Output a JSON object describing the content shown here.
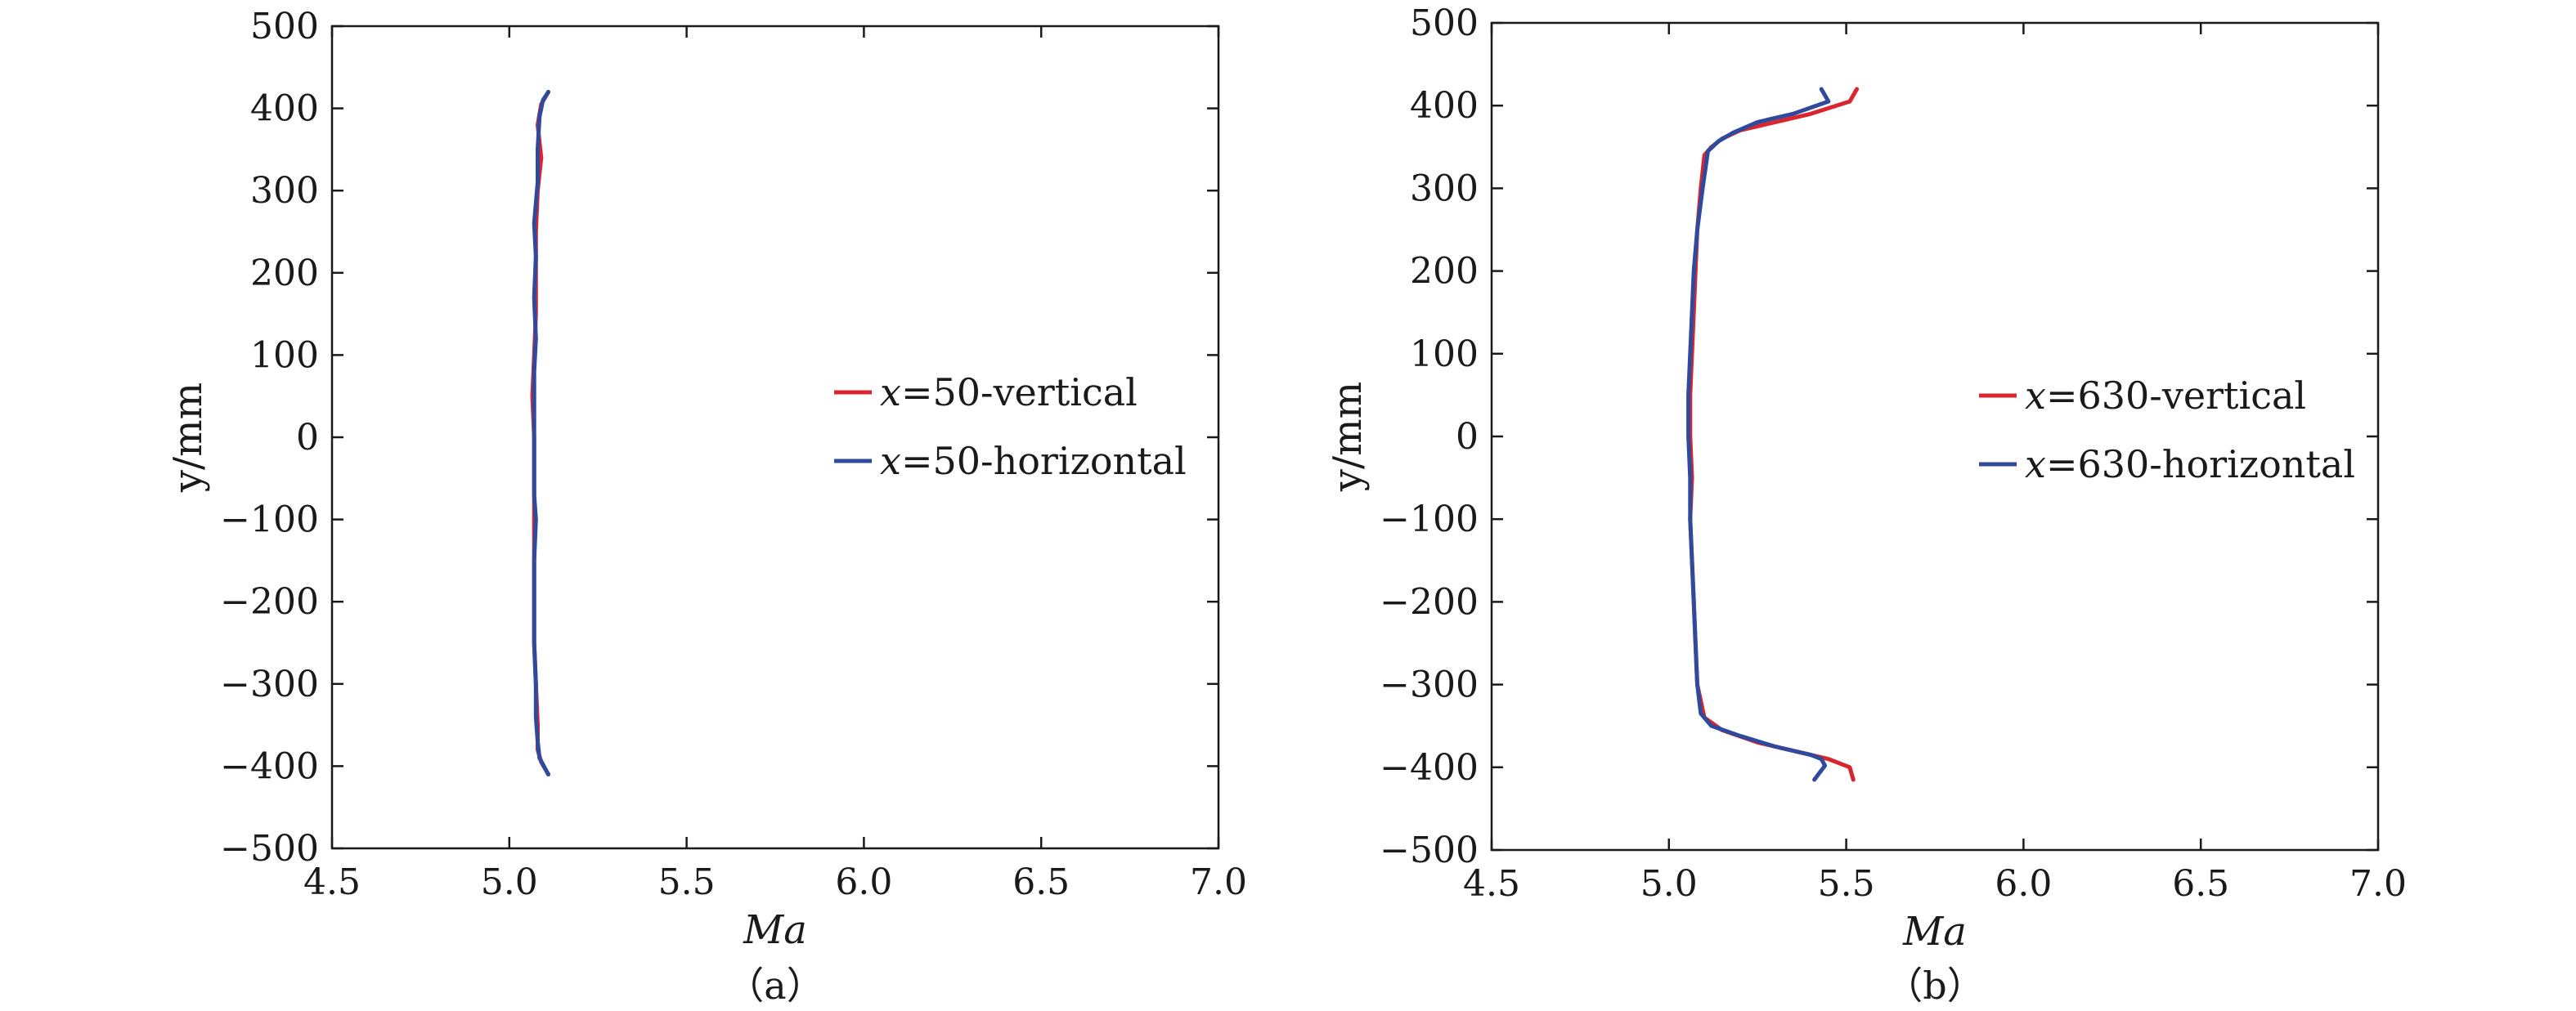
{
  "colors": {
    "vertical": "#d9262e",
    "horizontal": "#2f4a9c",
    "axis": "#1a1a1a"
  },
  "chart_data": [
    {
      "type": "line",
      "caption": "（a）",
      "xlabel": "Ma",
      "ylabel": "y/mm",
      "xlim": [
        4.5,
        7.0
      ],
      "ylim": [
        -500,
        500
      ],
      "xticks": [
        4.5,
        5.0,
        5.5,
        6.0,
        6.5,
        7.0
      ],
      "xtick_labels": [
        "4.5",
        "5.0",
        "5.5",
        "6.0",
        "6.5",
        "7.0"
      ],
      "yticks": [
        500,
        400,
        300,
        200,
        100,
        0,
        -100,
        -200,
        -300,
        -400,
        -500
      ],
      "ytick_labels": [
        "500",
        "400",
        "300",
        "200",
        "100",
        "0",
        "−100",
        "−200",
        "−300",
        "−400",
        "−500"
      ],
      "legend_position": "center-right",
      "series": [
        {
          "name": "x=50-vertical",
          "legend_var": "x",
          "legend_rest": "=50-vertical",
          "color_key": "vertical",
          "points": [
            [
              5.11,
              420
            ],
            [
              5.09,
              405
            ],
            [
              5.08,
              380
            ],
            [
              5.09,
              340
            ],
            [
              5.08,
              300
            ],
            [
              5.075,
              250
            ],
            [
              5.075,
              200
            ],
            [
              5.075,
              150
            ],
            [
              5.07,
              100
            ],
            [
              5.065,
              50
            ],
            [
              5.07,
              0
            ],
            [
              5.07,
              -50
            ],
            [
              5.07,
              -100
            ],
            [
              5.07,
              -150
            ],
            [
              5.07,
              -200
            ],
            [
              5.07,
              -250
            ],
            [
              5.075,
              -300
            ],
            [
              5.08,
              -350
            ],
            [
              5.08,
              -380
            ],
            [
              5.09,
              -395
            ],
            [
              5.11,
              -410
            ]
          ]
        },
        {
          "name": "x=50-horizontal",
          "legend_var": "x",
          "legend_rest": "=50-horizontal",
          "color_key": "horizontal",
          "points": [
            [
              5.11,
              420
            ],
            [
              5.095,
              410
            ],
            [
              5.085,
              390
            ],
            [
              5.08,
              350
            ],
            [
              5.08,
              310
            ],
            [
              5.07,
              260
            ],
            [
              5.075,
              220
            ],
            [
              5.07,
              170
            ],
            [
              5.075,
              120
            ],
            [
              5.07,
              80
            ],
            [
              5.07,
              30
            ],
            [
              5.07,
              -20
            ],
            [
              5.07,
              -70
            ],
            [
              5.075,
              -100
            ],
            [
              5.07,
              -150
            ],
            [
              5.07,
              -200
            ],
            [
              5.07,
              -250
            ],
            [
              5.075,
              -300
            ],
            [
              5.075,
              -340
            ],
            [
              5.08,
              -370
            ],
            [
              5.085,
              -390
            ],
            [
              5.11,
              -410
            ]
          ]
        }
      ]
    },
    {
      "type": "line",
      "caption": "（b）",
      "xlabel": "Ma",
      "ylabel": "y/mm",
      "xlim": [
        4.5,
        7.0
      ],
      "ylim": [
        -500,
        500
      ],
      "xticks": [
        4.5,
        5.0,
        5.5,
        6.0,
        6.5,
        7.0
      ],
      "xtick_labels": [
        "4.5",
        "5.0",
        "5.5",
        "6.0",
        "6.5",
        "7.0"
      ],
      "yticks": [
        500,
        400,
        300,
        200,
        100,
        0,
        -100,
        -200,
        -300,
        -400,
        -500
      ],
      "ytick_labels": [
        "500",
        "400",
        "300",
        "200",
        "100",
        "0",
        "−100",
        "−200",
        "−300",
        "−400",
        "−500"
      ],
      "legend_position": "center-right",
      "series": [
        {
          "name": "x=630-vertical",
          "legend_var": "x",
          "legend_rest": "=630-vertical",
          "color_key": "vertical",
          "points": [
            [
              5.53,
              420
            ],
            [
              5.51,
              405
            ],
            [
              5.4,
              390
            ],
            [
              5.3,
              380
            ],
            [
              5.2,
              370
            ],
            [
              5.15,
              360
            ],
            [
              5.12,
              350
            ],
            [
              5.1,
              340
            ],
            [
              5.09,
              300
            ],
            [
              5.08,
              250
            ],
            [
              5.075,
              200
            ],
            [
              5.07,
              150
            ],
            [
              5.065,
              100
            ],
            [
              5.06,
              50
            ],
            [
              5.06,
              0
            ],
            [
              5.065,
              -50
            ],
            [
              5.06,
              -100
            ],
            [
              5.065,
              -150
            ],
            [
              5.07,
              -200
            ],
            [
              5.075,
              -250
            ],
            [
              5.08,
              -300
            ],
            [
              5.1,
              -340
            ],
            [
              5.15,
              -355
            ],
            [
              5.25,
              -370
            ],
            [
              5.35,
              -380
            ],
            [
              5.45,
              -390
            ],
            [
              5.51,
              -400
            ],
            [
              5.52,
              -415
            ]
          ]
        },
        {
          "name": "x=630-horizontal",
          "legend_var": "x",
          "legend_rest": "=630-horizontal",
          "color_key": "horizontal",
          "points": [
            [
              5.43,
              420
            ],
            [
              5.45,
              405
            ],
            [
              5.35,
              390
            ],
            [
              5.25,
              380
            ],
            [
              5.18,
              367
            ],
            [
              5.14,
              357
            ],
            [
              5.11,
              345
            ],
            [
              5.095,
              300
            ],
            [
              5.08,
              250
            ],
            [
              5.07,
              200
            ],
            [
              5.065,
              150
            ],
            [
              5.06,
              100
            ],
            [
              5.055,
              50
            ],
            [
              5.055,
              0
            ],
            [
              5.06,
              -50
            ],
            [
              5.06,
              -100
            ],
            [
              5.065,
              -150
            ],
            [
              5.07,
              -200
            ],
            [
              5.075,
              -250
            ],
            [
              5.08,
              -300
            ],
            [
              5.09,
              -335
            ],
            [
              5.12,
              -350
            ],
            [
              5.2,
              -362
            ],
            [
              5.3,
              -375
            ],
            [
              5.4,
              -385
            ],
            [
              5.43,
              -390
            ],
            [
              5.44,
              -398
            ],
            [
              5.41,
              -415
            ]
          ]
        }
      ]
    }
  ]
}
